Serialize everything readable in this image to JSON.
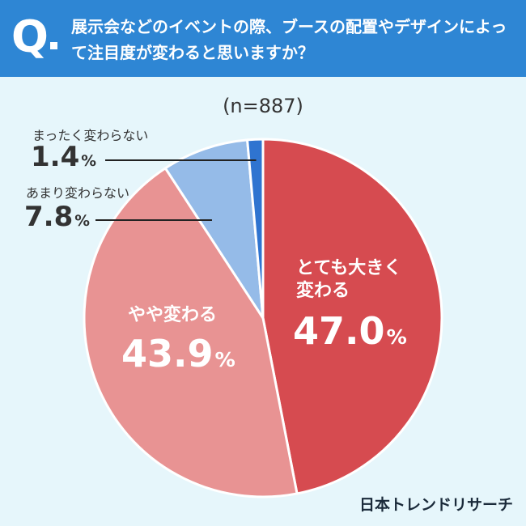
{
  "header": {
    "q_mark": "Q",
    "question": "展示会などのイベントの際、ブースの配置やデザインによって注目度が変わると思いますか？"
  },
  "sample": "(n=887)",
  "brand": "日本トレンドリサーチ",
  "colors": {
    "header_bg": "#2e86d4",
    "page_bg": "#e6f6fb"
  },
  "chart_data": {
    "type": "pie",
    "start": "12 o'clock, clockwise",
    "slices": [
      {
        "label": "とても大きく変わる",
        "value": 47.0,
        "display": "47.0",
        "color": "#d64b50"
      },
      {
        "label": "やや変わる",
        "value": 43.9,
        "display": "43.9",
        "color": "#e89393"
      },
      {
        "label": "あまり変わらない",
        "value": 7.8,
        "display": "7.8",
        "color": "#95bbe8"
      },
      {
        "label": "まったく変わらない",
        "value": 1.4,
        "display": "1.4",
        "color": "#2f74d0"
      }
    ],
    "unit": "%"
  }
}
